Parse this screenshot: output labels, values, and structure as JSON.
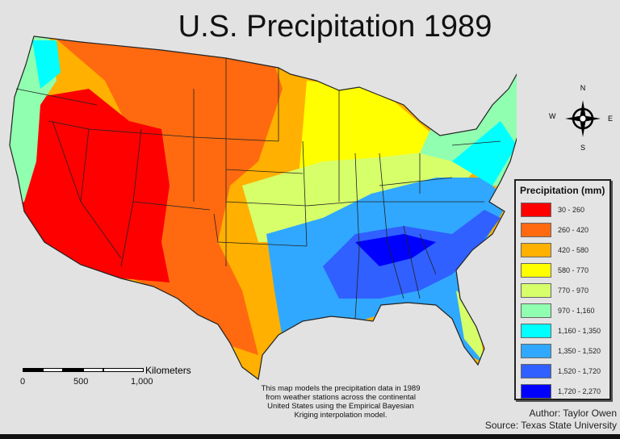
{
  "title": "U.S. Precipitation 1989",
  "legend": {
    "title": "Precipitation (mm)",
    "classes": [
      {
        "label": "30 - 260",
        "color": "#ff0000"
      },
      {
        "label": "260 - 420",
        "color": "#ff6a10"
      },
      {
        "label": "420 - 580",
        "color": "#ffb000"
      },
      {
        "label": "580 - 770",
        "color": "#ffff00"
      },
      {
        "label": "770 - 970",
        "color": "#d6ff6a"
      },
      {
        "label": "970 - 1,160",
        "color": "#90ffb0"
      },
      {
        "label": "1,160 - 1,350",
        "color": "#00ffff"
      },
      {
        "label": "1,350 - 1,520",
        "color": "#30a8ff"
      },
      {
        "label": "1,520 - 1,720",
        "color": "#3060ff"
      },
      {
        "label": "1,720 - 2,270",
        "color": "#0000ff"
      }
    ]
  },
  "compass": {
    "n": "N",
    "s": "S",
    "e": "E",
    "w": "W"
  },
  "scale": {
    "unit": "Kilometers",
    "ticks": [
      "0",
      "500",
      "1,000"
    ]
  },
  "note": "This map models the precipitation data in 1989 from weather stations across the continental United States using the Empirical Bayesian Kriging interpolation model.",
  "credits": {
    "author": "Author: Taylor Owen",
    "source": "Source: Texas State University"
  }
}
